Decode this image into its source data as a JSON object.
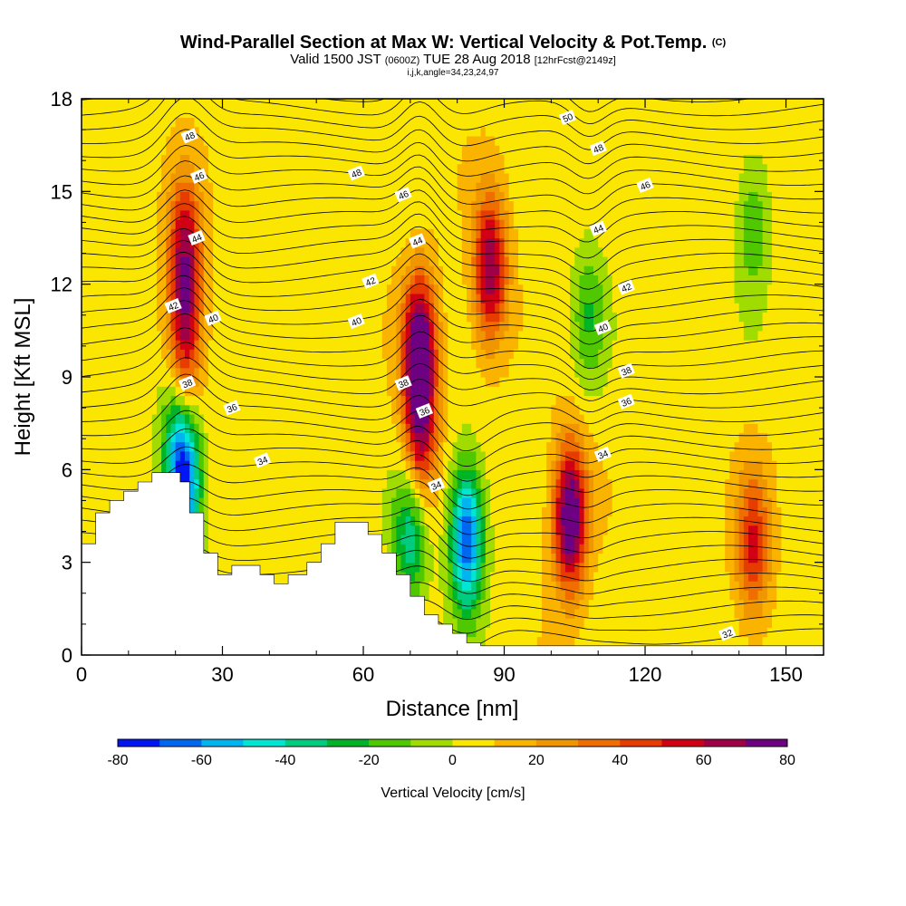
{
  "header": {
    "title": "Wind-Parallel Section at Max W: Vertical Velocity & Pot.Temp.",
    "copyright": "(C)",
    "valid_prefix": "Valid 1500 JST",
    "valid_zulu": "(0600Z)",
    "valid_date": "TUE 28 Aug 2018",
    "forecast": "[12hrFcst@2149z]",
    "indices": "i,j,k,angle=34,23,24,97"
  },
  "chart_data": {
    "type": "heatmap",
    "title": "Wind-Parallel Section at Max W: Vertical Velocity & Pot.Temp.",
    "xlabel": "Distance [nm]",
    "ylabel": "Height [Kft MSL]",
    "xlim": [
      0,
      158
    ],
    "ylim": [
      0,
      18
    ],
    "xticks": [
      0,
      30,
      60,
      90,
      120,
      150
    ],
    "yticks": [
      0,
      3,
      6,
      9,
      12,
      15,
      18
    ],
    "colorbar": {
      "title": "Vertical Velocity [cm/s]",
      "labels": [
        -80,
        -60,
        -40,
        -20,
        0,
        20,
        40,
        60,
        80
      ],
      "levels": [
        -80,
        -70,
        -60,
        -50,
        -40,
        -30,
        -20,
        -10,
        0,
        10,
        20,
        30,
        40,
        50,
        60,
        70,
        80
      ],
      "colors": [
        "#0016f2",
        "#0067f0",
        "#00b4f0",
        "#00e6d2",
        "#00cc80",
        "#00b428",
        "#50c800",
        "#a0dc00",
        "#fae600",
        "#fab400",
        "#f09600",
        "#f06e00",
        "#e63c00",
        "#d20014",
        "#a00046",
        "#6e0082"
      ]
    },
    "features": [
      {
        "x": 22,
        "y": 13,
        "w": 55,
        "name": "updraft"
      },
      {
        "x": 22,
        "y": 10,
        "w": 50,
        "name": "updraft"
      },
      {
        "x": 20,
        "y": 7,
        "w": -30,
        "name": "downdraft"
      },
      {
        "x": 22,
        "y": 5.5,
        "w": -75,
        "name": "downdraft"
      },
      {
        "x": 72,
        "y": 10,
        "w": 75,
        "name": "updraft"
      },
      {
        "x": 72,
        "y": 7,
        "w": 55,
        "name": "updraft"
      },
      {
        "x": 70,
        "y": 4,
        "w": -45,
        "name": "downdraft"
      },
      {
        "x": 82,
        "y": 3.8,
        "w": -78,
        "name": "downdraft"
      },
      {
        "x": 87,
        "y": 12.5,
        "w": 65,
        "name": "updraft"
      },
      {
        "x": 104,
        "y": 4.5,
        "w": 80,
        "name": "updraft"
      },
      {
        "x": 108,
        "y": 11,
        "w": -25,
        "name": "downdraft"
      },
      {
        "x": 143,
        "y": 3.5,
        "w": 45,
        "name": "updraft"
      },
      {
        "x": 143,
        "y": 14,
        "w": -25,
        "name": "downdraft"
      }
    ],
    "terrain": [
      [
        0,
        3.6
      ],
      [
        3,
        3.6
      ],
      [
        3,
        4.6
      ],
      [
        6,
        4.6
      ],
      [
        6,
        5.0
      ],
      [
        9,
        5.0
      ],
      [
        9,
        5.3
      ],
      [
        12,
        5.3
      ],
      [
        12,
        5.6
      ],
      [
        15,
        5.6
      ],
      [
        15,
        5.9
      ],
      [
        21,
        5.9
      ],
      [
        21,
        5.6
      ],
      [
        23,
        5.6
      ],
      [
        23,
        4.6
      ],
      [
        26,
        4.6
      ],
      [
        26,
        3.3
      ],
      [
        29,
        3.3
      ],
      [
        29,
        2.6
      ],
      [
        32,
        2.6
      ],
      [
        32,
        2.9
      ],
      [
        38,
        2.9
      ],
      [
        38,
        2.6
      ],
      [
        41,
        2.6
      ],
      [
        41,
        2.3
      ],
      [
        44,
        2.3
      ],
      [
        44,
        2.6
      ],
      [
        48,
        2.6
      ],
      [
        48,
        3.0
      ],
      [
        51,
        3.0
      ],
      [
        51,
        3.6
      ],
      [
        54,
        3.6
      ],
      [
        54,
        4.3
      ],
      [
        61,
        4.3
      ],
      [
        61,
        3.9
      ],
      [
        64,
        3.9
      ],
      [
        64,
        3.3
      ],
      [
        67,
        3.3
      ],
      [
        67,
        2.6
      ],
      [
        70,
        2.6
      ],
      [
        70,
        1.9
      ],
      [
        73,
        1.9
      ],
      [
        73,
        1.3
      ],
      [
        76,
        1.3
      ],
      [
        76,
        1.0
      ],
      [
        79,
        1.0
      ],
      [
        79,
        0.7
      ],
      [
        82,
        0.7
      ],
      [
        82,
        0.4
      ],
      [
        85,
        0.4
      ],
      [
        85,
        0.3
      ],
      [
        158,
        0.3
      ]
    ],
    "isentrope_labels": [
      {
        "text": "48",
        "x": 23,
        "y": 16.8
      },
      {
        "text": "46",
        "x": 25,
        "y": 15.5
      },
      {
        "text": "44",
        "x": 24.5,
        "y": 13.5
      },
      {
        "text": "42",
        "x": 19.5,
        "y": 11.3
      },
      {
        "text": "40",
        "x": 28,
        "y": 10.9
      },
      {
        "text": "38",
        "x": 22.5,
        "y": 8.8
      },
      {
        "text": "36",
        "x": 32,
        "y": 8.0
      },
      {
        "text": "34",
        "x": 38.5,
        "y": 6.3
      },
      {
        "text": "48",
        "x": 58.5,
        "y": 15.6
      },
      {
        "text": "46",
        "x": 68.5,
        "y": 14.9
      },
      {
        "text": "44",
        "x": 71.5,
        "y": 13.4
      },
      {
        "text": "42",
        "x": 61.5,
        "y": 12.1
      },
      {
        "text": "40",
        "x": 58.5,
        "y": 10.8
      },
      {
        "text": "38",
        "x": 68.5,
        "y": 8.8
      },
      {
        "text": "36",
        "x": 73,
        "y": 7.9
      },
      {
        "text": "34",
        "x": 75.5,
        "y": 5.5
      },
      {
        "text": "50",
        "x": 103.5,
        "y": 17.4
      },
      {
        "text": "48",
        "x": 110,
        "y": 16.4
      },
      {
        "text": "46",
        "x": 120,
        "y": 15.2
      },
      {
        "text": "44",
        "x": 110,
        "y": 13.8
      },
      {
        "text": "42",
        "x": 116,
        "y": 11.9
      },
      {
        "text": "40",
        "x": 111,
        "y": 10.6
      },
      {
        "text": "38",
        "x": 116,
        "y": 9.2
      },
      {
        "text": "36",
        "x": 116,
        "y": 8.2
      },
      {
        "text": "34",
        "x": 111,
        "y": 6.5
      },
      {
        "text": "32",
        "x": 137.5,
        "y": 0.7
      }
    ]
  }
}
